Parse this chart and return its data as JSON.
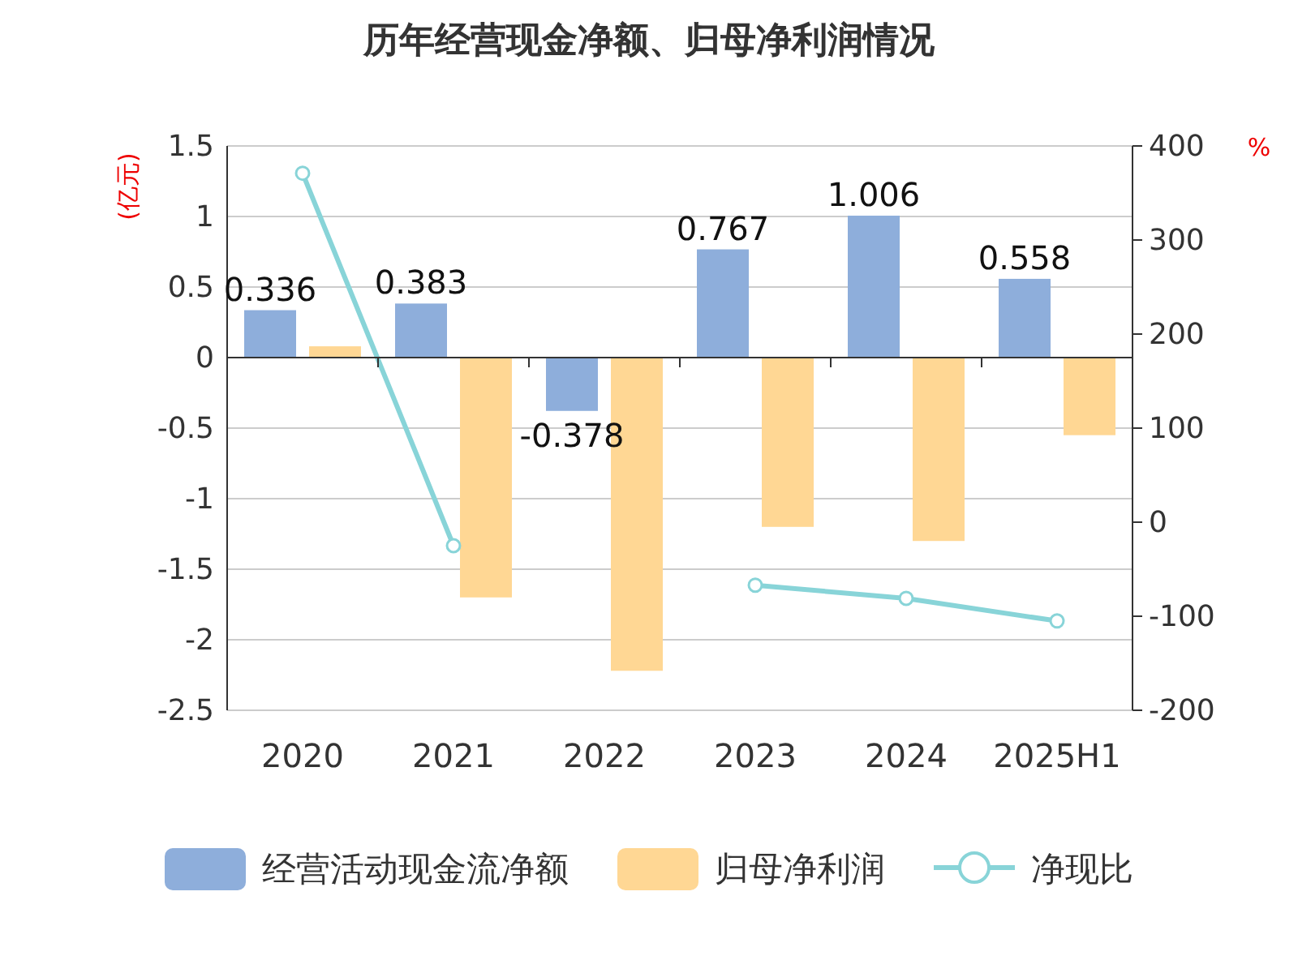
{
  "chart_data": {
    "type": "bar",
    "title": "历年经营现金净额、归母净利润情况",
    "ylabel": "(亿元)",
    "y2label": "%",
    "categories": [
      "2020",
      "2021",
      "2022",
      "2023",
      "2024",
      "2025H1"
    ],
    "series": [
      {
        "name": "经营活动现金流净额",
        "color": "#8eaedb",
        "values": [
          0.336,
          0.383,
          -0.378,
          0.767,
          1.006,
          0.558
        ],
        "value_labels": [
          "0.336",
          "0.383",
          "-0.378",
          "0.767",
          "1.006",
          "0.558"
        ]
      },
      {
        "name": "归母净利润",
        "color": "#ffd794",
        "values": [
          0.08,
          -1.7,
          -2.22,
          -1.2,
          -1.3,
          -0.55
        ]
      },
      {
        "name": "净现比",
        "type": "line",
        "axis": "y2",
        "color": "#88d4d8",
        "marker": "circle",
        "values": [
          371,
          -25,
          null,
          -67,
          -81,
          -105
        ]
      }
    ],
    "ylim": [
      -2.5,
      1.5
    ],
    "yticks": [
      {
        "value": -2.5,
        "label": "-2.5"
      },
      {
        "value": -2,
        "label": "-2"
      },
      {
        "value": -1.5,
        "label": "-1.5"
      },
      {
        "value": -1,
        "label": "-1"
      },
      {
        "value": -0.5,
        "label": "-0.5"
      },
      0,
      0.5,
      1,
      1.5
    ],
    "y2lim": [
      -200,
      400
    ],
    "y2ticks": [
      -200,
      -100,
      0,
      100,
      200,
      300,
      400
    ],
    "grid": "y",
    "legend": "bottom"
  }
}
